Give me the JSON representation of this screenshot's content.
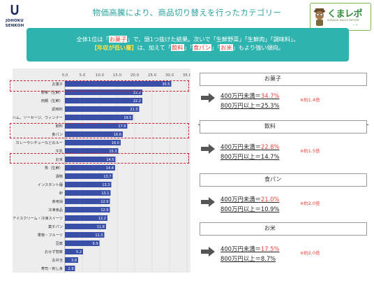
{
  "header": {
    "title": "物価高騰により、商品切り替えを行ったカテゴリー",
    "logo_left_line1": "JOHOKU",
    "logo_left_line2": "SENKOH",
    "logo_right_brand": "くまレポ",
    "logo_right_sub": "KURASHI-MACHI REPORT",
    "logo_right_sig": "~ ✎"
  },
  "summary": {
    "l1_a": "全体1位は「",
    "l1_b": "お菓子",
    "l1_c": "」で、頭1つ抜けた結果。次いで「生鮮野菜」「生鮮肉」「調味料」。",
    "l2_a": "【年収が低い層】",
    "l2_b": "は、加えて「",
    "l2_c": "飲料",
    "l2_d": "」「",
    "l2_e": "食パン",
    "l2_f": "」「",
    "l2_g": "お米",
    "l2_h": "」もより強い傾向。"
  },
  "chart_data": {
    "type": "bar",
    "orientation": "horizontal",
    "xlim": [
      0,
      35
    ],
    "ticks": [
      "0.0",
      "5.0",
      "10.0",
      "15.0",
      "20.0",
      "25.0",
      "30.0",
      "35.0"
    ],
    "categories": [
      "お菓子",
      "野菜（生鮮）",
      "肉類（生鮮）",
      "調味料",
      "ハム、ソーセージ、ウィンナー",
      "飲料",
      "食パン",
      "カレーやシチューなどのルー",
      "牛乳",
      "お米",
      "魚（生鮮）",
      "漬物",
      "インスタント麺",
      "卵",
      "食用油",
      "冷凍食品",
      "アイスクリーム・冷凍スイーツ",
      "菓子パン",
      "果物・フルーツ",
      "豆腐",
      "おかず惣菜",
      "お弁当",
      "寿司・刺し身"
    ],
    "values": [
      30.5,
      22.2,
      22.2,
      21.3,
      19.5,
      17.9,
      16.6,
      16.0,
      15.3,
      14.5,
      14.4,
      13.7,
      13.3,
      13.1,
      12.9,
      12.9,
      12.2,
      11.8,
      11.3,
      9.9,
      5.2,
      3.8,
      2.9
    ],
    "value_labels": [
      "30.5",
      "22.2",
      "22.2",
      "21.3",
      "19.5",
      "17.9",
      "16.6",
      "16.0",
      "15.3",
      "14.5",
      "14.4",
      "13.7",
      "13.3",
      "13.1",
      "12.9",
      "12.9",
      "12.2",
      "11.8",
      "11.3",
      "9.9",
      "5.2",
      "3.8",
      "2.9"
    ],
    "highlighted": [
      "お菓子",
      "飲料",
      "食パン",
      "お米"
    ],
    "bar_color": "#3a4fa8"
  },
  "categories_panel": [
    {
      "name": "お菓子",
      "low": "400万円未満＝",
      "low_val": "34.7%",
      "high": "800万円以上＝25.3%",
      "note": "※約1.4倍"
    },
    {
      "name": "飲料",
      "low": "400万円未満＝",
      "low_val": "22.8%",
      "high": "800万円以上＝14.7%",
      "note": "※約1.5倍"
    },
    {
      "name": "食パン",
      "low": "400万円未満＝",
      "low_val": "21.0%",
      "high": "800万円以上＝10.9%",
      "note": "※約2.0倍"
    },
    {
      "name": "お米",
      "low": "400万円未満＝",
      "low_val": "17.5%",
      "high": "800万円以上＝8.7%",
      "note": "※約2.0倍"
    }
  ],
  "colors": {
    "teal": "#2fb3ae",
    "accent_red": "#e8413a",
    "bar": "#3a4fa8",
    "dash": "#c8202a"
  }
}
